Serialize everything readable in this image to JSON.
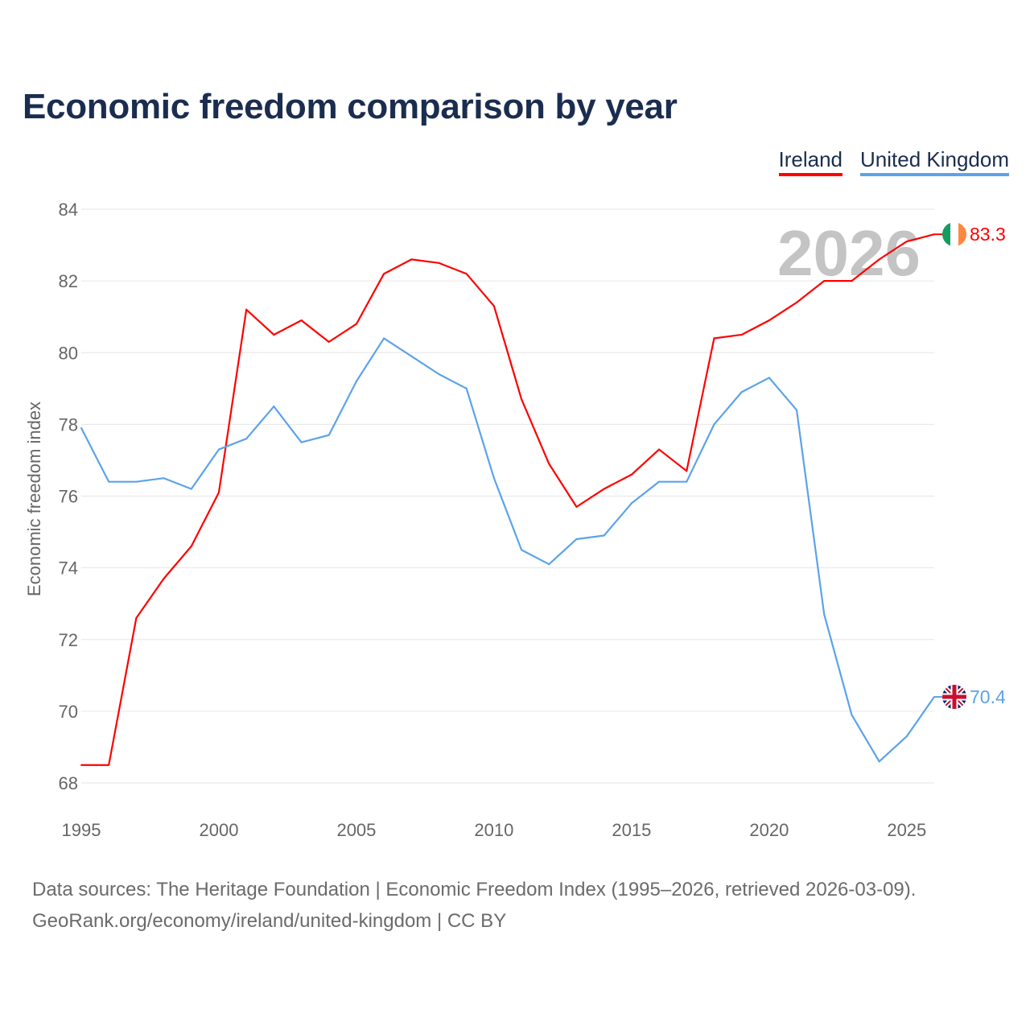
{
  "chart_data": {
    "type": "line",
    "title": "Economic freedom comparison by year",
    "ylabel": "Economic freedom index",
    "xlabel": "",
    "ylim": [
      68,
      84
    ],
    "xlim": [
      1995,
      2026
    ],
    "yticks": [
      68,
      70,
      72,
      74,
      76,
      78,
      80,
      82,
      84
    ],
    "xticks": [
      1995,
      2000,
      2005,
      2010,
      2015,
      2020,
      2025
    ],
    "grid": true,
    "legend_position": "top-right",
    "year_watermark": "2026",
    "x": [
      1995,
      1996,
      1997,
      1998,
      1999,
      2000,
      2001,
      2002,
      2003,
      2004,
      2005,
      2006,
      2007,
      2008,
      2009,
      2010,
      2011,
      2012,
      2013,
      2014,
      2015,
      2016,
      2017,
      2018,
      2019,
      2020,
      2021,
      2022,
      2023,
      2024,
      2025,
      2026
    ],
    "series": [
      {
        "name": "Ireland",
        "color": "#ff0000",
        "end_label": "83.3",
        "flag": "ireland-flag",
        "values": [
          68.5,
          68.5,
          72.6,
          73.7,
          74.6,
          76.1,
          81.2,
          80.5,
          80.9,
          80.3,
          80.8,
          82.2,
          82.6,
          82.5,
          82.2,
          81.3,
          78.7,
          76.9,
          75.7,
          76.2,
          76.6,
          77.3,
          76.7,
          80.4,
          80.5,
          80.9,
          81.4,
          82.0,
          82.0,
          82.6,
          83.1,
          83.3
        ]
      },
      {
        "name": "United Kingdom",
        "color": "#5ba3ea",
        "end_label": "70.4",
        "flag": "uk-flag",
        "values": [
          77.9,
          76.4,
          76.4,
          76.5,
          76.2,
          77.3,
          77.6,
          78.5,
          77.5,
          77.7,
          79.2,
          80.4,
          79.9,
          79.4,
          79.0,
          76.5,
          74.5,
          74.1,
          74.8,
          74.9,
          75.8,
          76.4,
          76.4,
          78.0,
          78.9,
          79.3,
          78.4,
          72.7,
          69.9,
          68.6,
          69.3,
          70.4
        ]
      }
    ]
  },
  "footer": {
    "line1": "Data sources: The Heritage Foundation | Economic Freedom Index (1995–2026, retrieved 2026-03-09).",
    "line2": "GeoRank.org/economy/ireland/united-kingdom | CC BY"
  }
}
